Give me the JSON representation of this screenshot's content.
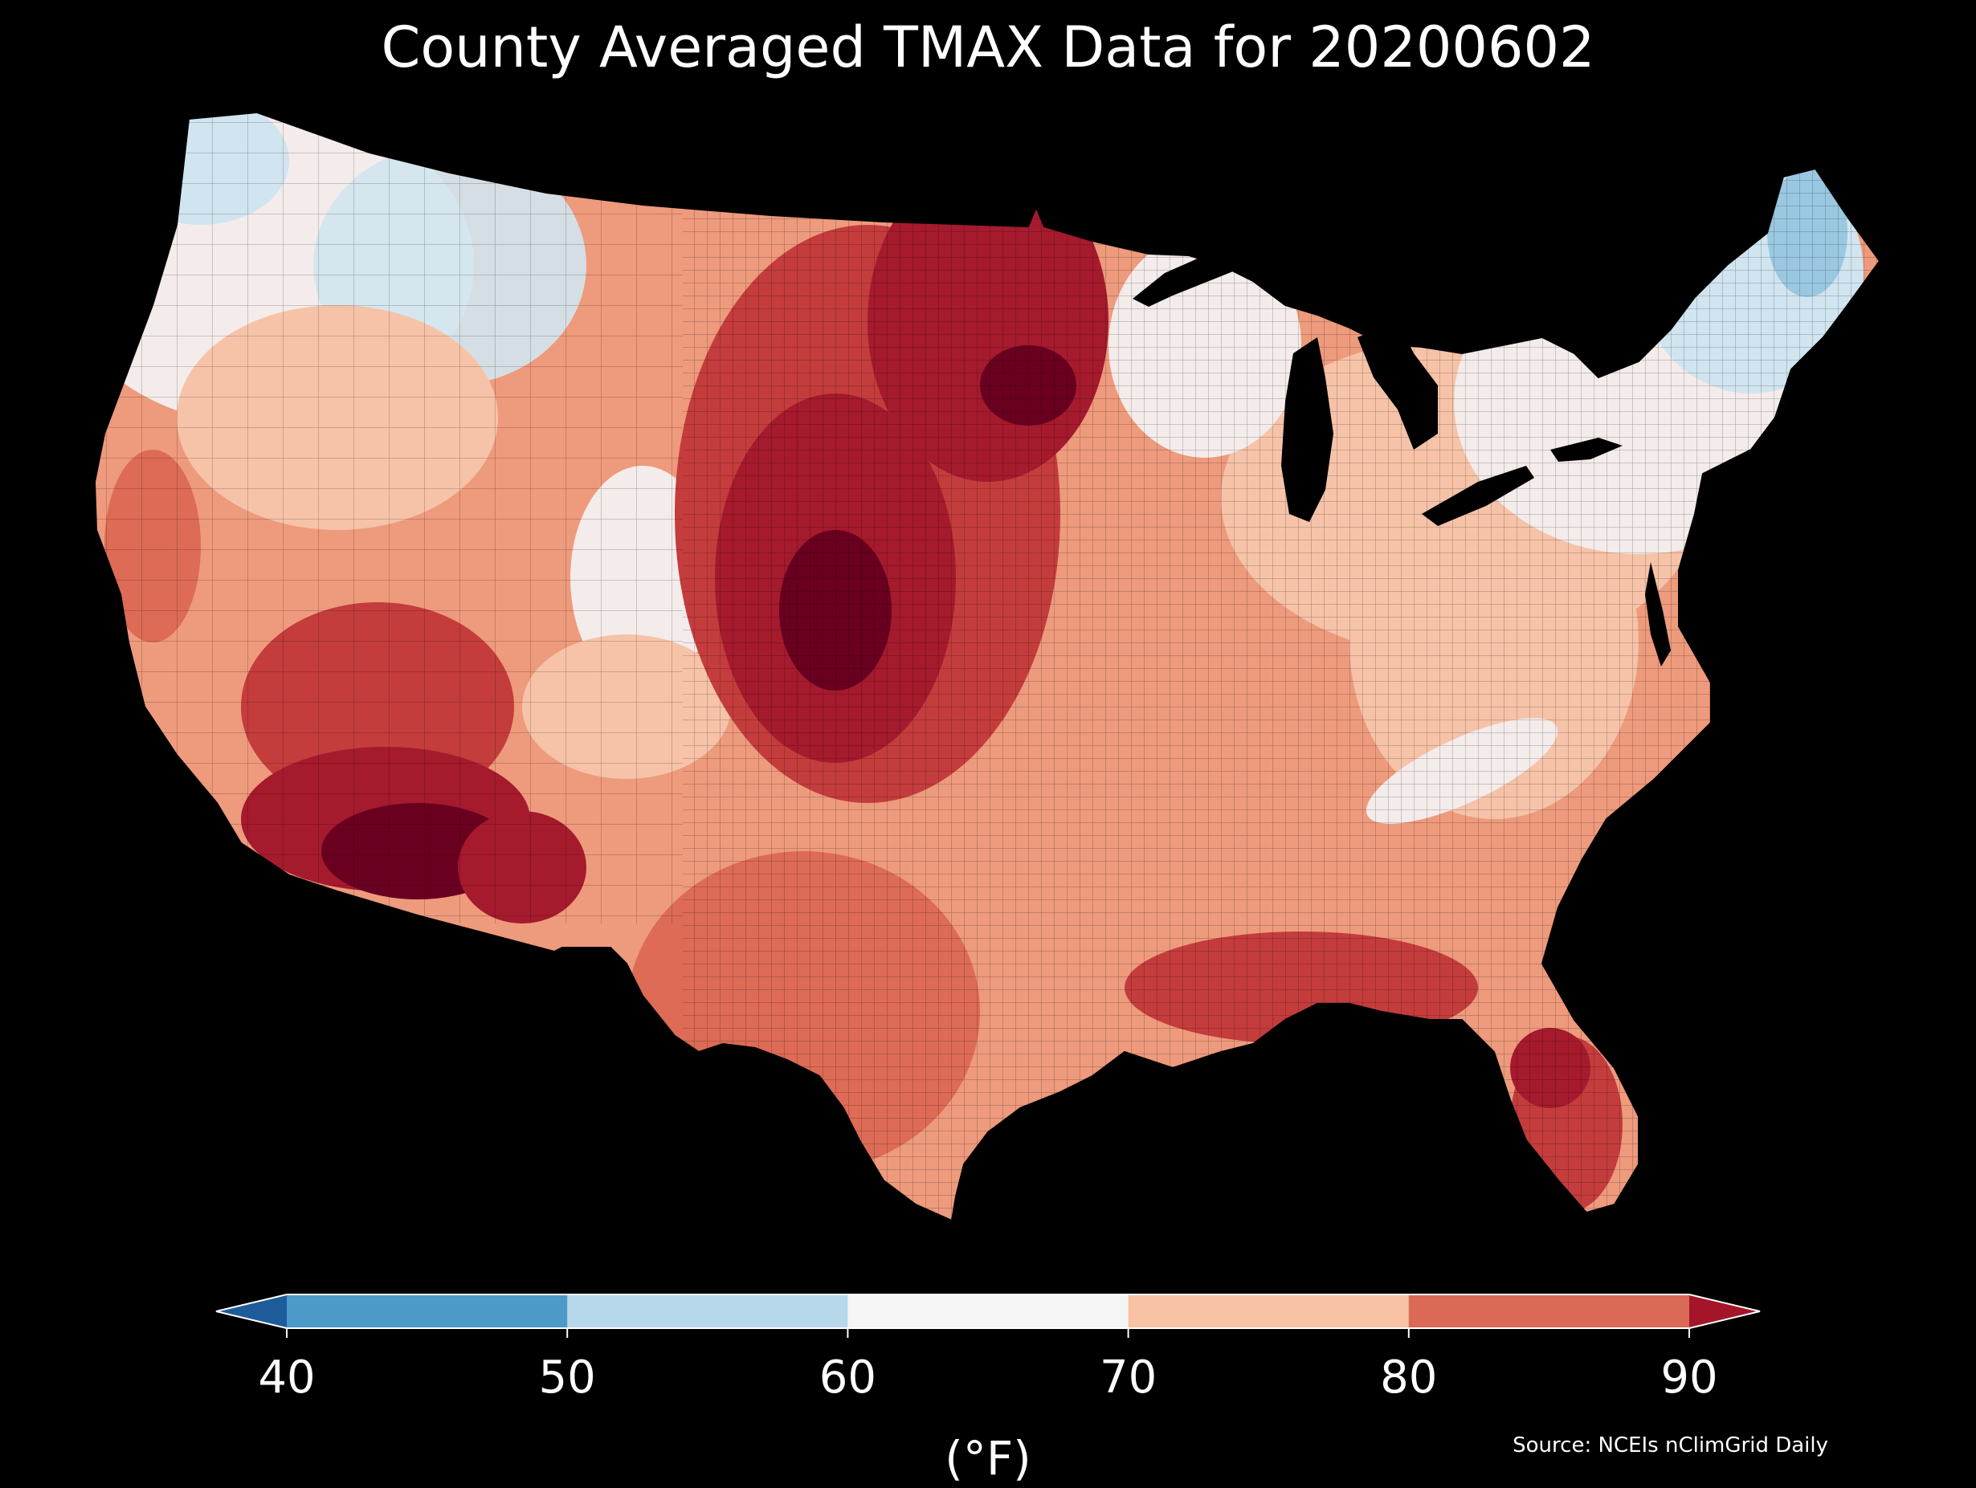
{
  "title": "County Averaged TMAX Data for 20200602",
  "colorbar": {
    "unit_label": "(°F)",
    "ticks": [
      "40",
      "50",
      "60",
      "70",
      "80",
      "90"
    ],
    "bins": [
      {
        "range": [
          null,
          40
        ],
        "color": "#1e5b9b"
      },
      {
        "range": [
          40,
          50
        ],
        "color": "#4c9ac8"
      },
      {
        "range": [
          50,
          60
        ],
        "color": "#b7d8ea"
      },
      {
        "range": [
          60,
          70
        ],
        "color": "#f5f5f5"
      },
      {
        "range": [
          70,
          80
        ],
        "color": "#f8c2a5"
      },
      {
        "range": [
          80,
          90
        ],
        "color": "#da6a56"
      },
      {
        "range": [
          90,
          null
        ],
        "color": "#a5152a"
      }
    ]
  },
  "source": "Source: NCEIs nClimGrid Daily",
  "map": {
    "region": "Contiguous United States",
    "variable": "TMAX",
    "units": "°F",
    "date": "20200602",
    "colors": {
      "cold_blue": "#9ac8e1",
      "pale_blue": "#d1e5f0",
      "near_white": "#f4ecea",
      "light_salmon": "#f6c3a8",
      "salmon": "#ee9a7c",
      "red_orange": "#dd6b55",
      "red": "#c43c3c",
      "dark_red": "#a51a2d",
      "maroon": "#6a0020"
    }
  }
}
